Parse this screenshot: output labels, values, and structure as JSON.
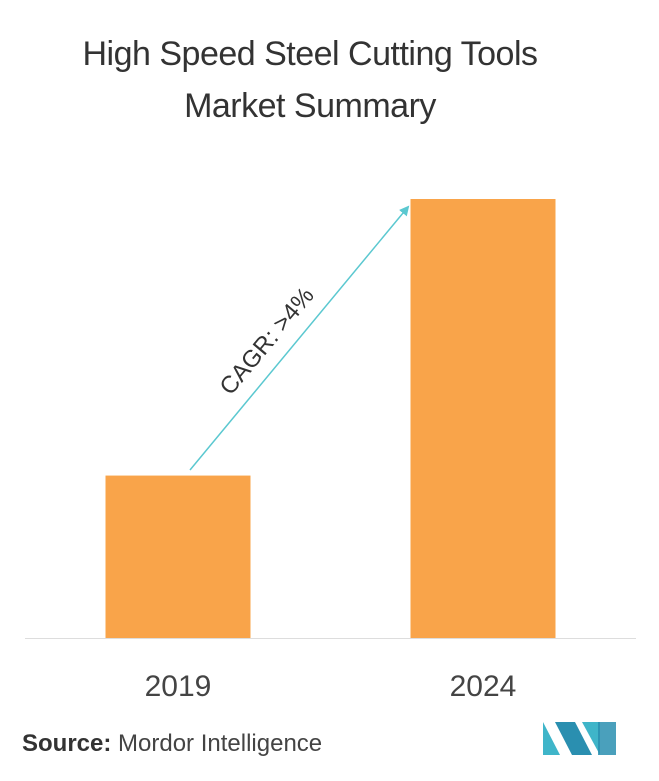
{
  "chart_data": {
    "type": "bar",
    "title": "High Speed Steel Cutting Tools Market Summary",
    "categories": [
      "2019",
      "2024"
    ],
    "values": [
      37,
      100
    ],
    "color": "#f9a44a",
    "annotation": "CAGR: >4%",
    "source": {
      "label": "Source:",
      "text": "Mordor Intelligence"
    }
  }
}
